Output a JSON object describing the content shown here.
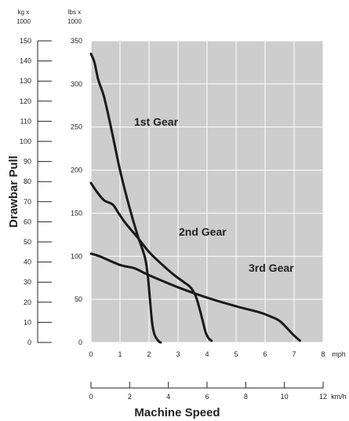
{
  "chart_data": {
    "type": "line",
    "title": "",
    "xlabel": "Machine Speed",
    "ylabel": "Drawbar Pull",
    "x_unit_primary": "mph",
    "x_unit_secondary": "km/h",
    "y_unit_kg": "kg x 1000",
    "y_unit_kg_lines": [
      "kg x",
      "1000"
    ],
    "y_unit_lbs": "lbs x 1000",
    "y_unit_lbs_lines": [
      "lbs x",
      "1000"
    ],
    "xlim_mph": [
      0,
      8
    ],
    "xlim_kmh": [
      0,
      12
    ],
    "ylim_lbs_x1000": [
      0,
      350
    ],
    "ylim_kg_x1000": [
      0,
      150
    ],
    "x_ticks_mph": [
      "0",
      "1",
      "2",
      "3",
      "4",
      "5",
      "6",
      "7",
      "8"
    ],
    "x_ticks_kmh": [
      "0",
      "2",
      "4",
      "6",
      "8",
      "10",
      "12"
    ],
    "y_ticks_lbs": [
      "0",
      "50",
      "100",
      "150",
      "200",
      "250",
      "300",
      "350"
    ],
    "y_ticks_kg": [
      "0",
      "10",
      "20",
      "30",
      "40",
      "50",
      "60",
      "70",
      "80",
      "90",
      "100",
      "110",
      "120",
      "130",
      "140",
      "150"
    ],
    "grid": true,
    "background_color": "#cdcdcd",
    "grid_color": "#ffffff",
    "line_color": "#1a1a1a",
    "series": [
      {
        "name": "1st Gear",
        "x": [
          0,
          0.12,
          0.25,
          0.45,
          0.7,
          1.0,
          1.3,
          1.6,
          1.85,
          1.95,
          2.02,
          2.07,
          2.12,
          2.18,
          2.25,
          2.35,
          2.4
        ],
        "y": [
          335,
          325,
          305,
          285,
          248,
          200,
          160,
          125,
          100,
          80,
          55,
          35,
          20,
          10,
          5,
          1,
          0
        ]
      },
      {
        "name": "2nd Gear",
        "x": [
          0,
          0.2,
          0.45,
          0.75,
          0.95,
          1.2,
          1.6,
          2.0,
          2.4,
          2.8,
          3.2,
          3.4,
          3.55,
          3.65,
          3.75,
          3.85,
          3.95,
          4.05,
          4.15
        ],
        "y": [
          185,
          175,
          165,
          160,
          150,
          138,
          122,
          105,
          92,
          80,
          70,
          65,
          58,
          50,
          38,
          25,
          12,
          5,
          2
        ]
      },
      {
        "name": "3rd Gear",
        "x": [
          0,
          0.3,
          1.0,
          1.5,
          2.0,
          3.0,
          4.0,
          5.0,
          5.8,
          6.2,
          6.5,
          6.8,
          7.0,
          7.2
        ],
        "y": [
          103,
          100,
          90,
          86,
          78,
          64,
          52,
          42,
          35,
          30,
          25,
          15,
          8,
          2
        ]
      }
    ],
    "annotations": [
      "1st Gear",
      "2nd Gear",
      "3rd Gear"
    ]
  }
}
